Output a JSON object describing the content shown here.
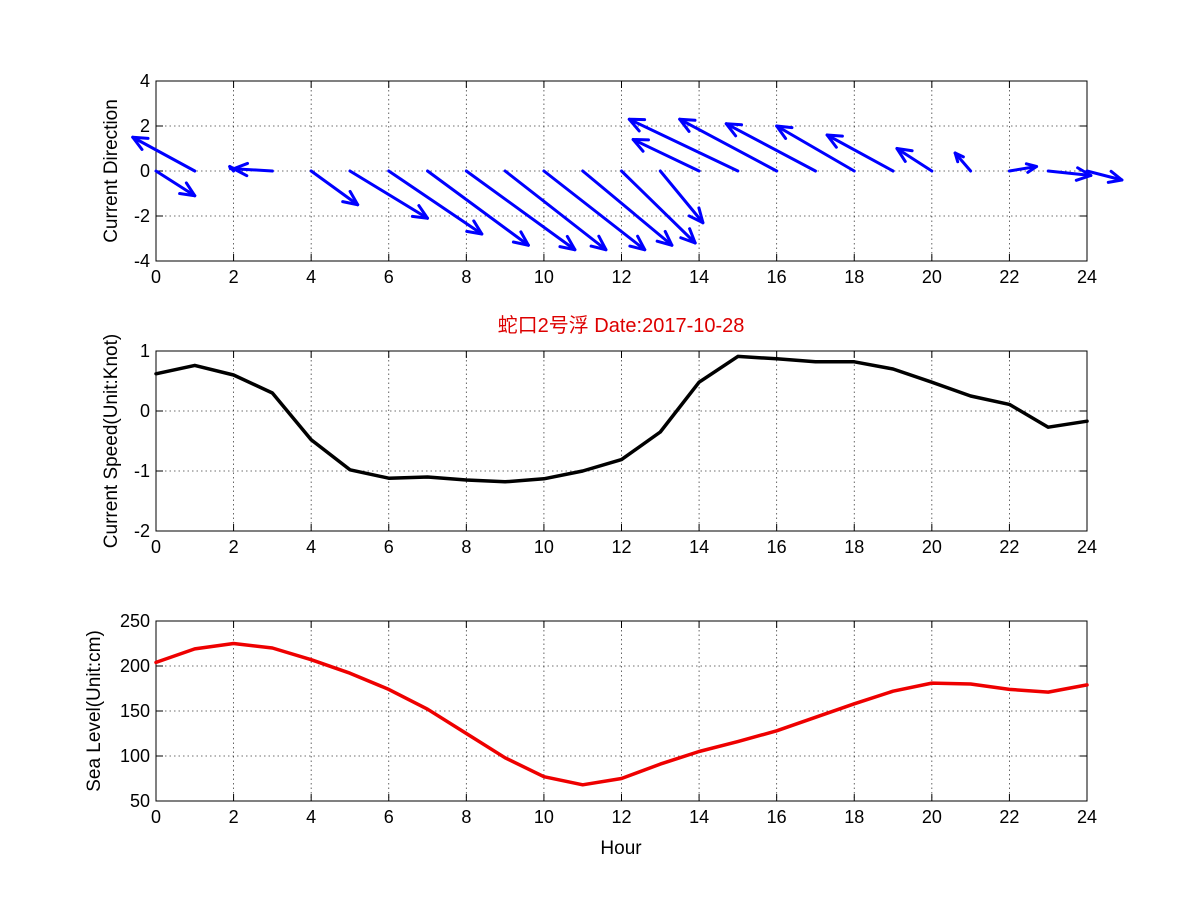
{
  "title": "蛇口2号浮   Date:2017-10-28",
  "colors": {
    "arrows": "#0000ff",
    "speed_line": "#000000",
    "sea_level_line": "#ee0000",
    "title": "#dd0000",
    "background": "#ffffff"
  },
  "chart_data": [
    {
      "type": "quiver",
      "name": "current-direction",
      "ylabel": "Current Direction",
      "xlabel": "",
      "xlim": [
        0,
        24
      ],
      "ylim": [
        -4,
        4
      ],
      "xticks": [
        0,
        2,
        4,
        6,
        8,
        10,
        12,
        14,
        16,
        18,
        20,
        22,
        24
      ],
      "yticks": [
        -4,
        -2,
        0,
        2,
        4
      ],
      "grid": true,
      "x": [
        0,
        1,
        2,
        3,
        4,
        5,
        6,
        7,
        8,
        9,
        10,
        11,
        12,
        13,
        14,
        15,
        16,
        17,
        18,
        19,
        20,
        21,
        22,
        23,
        24
      ],
      "u": [
        1.0,
        -1.6,
        -0.1,
        -1.0,
        1.2,
        2.0,
        2.4,
        2.6,
        2.8,
        2.6,
        2.6,
        2.3,
        1.9,
        1.1,
        -1.7,
        -2.8,
        -2.5,
        -2.3,
        -2.0,
        -1.7,
        -0.9,
        -0.4,
        0.7,
        1.1,
        0.9
      ],
      "v": [
        -1.1,
        1.5,
        0.2,
        0.1,
        -1.5,
        -2.1,
        -2.8,
        -3.3,
        -3.5,
        -3.5,
        -3.5,
        -3.3,
        -3.2,
        -2.3,
        1.4,
        2.3,
        2.3,
        2.1,
        2.0,
        1.6,
        1.0,
        0.8,
        0.2,
        -0.2,
        -0.4
      ]
    },
    {
      "type": "line",
      "name": "current-speed",
      "ylabel": "Current Speed(Unit:Knot)",
      "xlabel": "",
      "xlim": [
        0,
        24
      ],
      "ylim": [
        -2,
        1
      ],
      "xticks": [
        0,
        2,
        4,
        6,
        8,
        10,
        12,
        14,
        16,
        18,
        20,
        22,
        24
      ],
      "yticks": [
        -2,
        -1,
        0,
        1
      ],
      "grid": true,
      "x": [
        0,
        1,
        2,
        3,
        4,
        5,
        6,
        7,
        8,
        9,
        10,
        11,
        12,
        13,
        14,
        15,
        16,
        17,
        18,
        19,
        20,
        21,
        22,
        23,
        24
      ],
      "y": [
        0.62,
        0.76,
        0.6,
        0.3,
        -0.48,
        -0.98,
        -1.12,
        -1.1,
        -1.15,
        -1.18,
        -1.13,
        -1.0,
        -0.81,
        -0.35,
        0.48,
        0.91,
        0.87,
        0.82,
        0.82,
        0.7,
        0.48,
        0.25,
        0.11,
        -0.27,
        -0.17
      ]
    },
    {
      "type": "line",
      "name": "sea-level",
      "ylabel": "Sea Level(Unit:cm)",
      "xlabel": "Hour",
      "xlim": [
        0,
        24
      ],
      "ylim": [
        50,
        250
      ],
      "xticks": [
        0,
        2,
        4,
        6,
        8,
        10,
        12,
        14,
        16,
        18,
        20,
        22,
        24
      ],
      "yticks": [
        50,
        100,
        150,
        200,
        250
      ],
      "grid": true,
      "x": [
        0,
        1,
        2,
        3,
        4,
        5,
        6,
        7,
        8,
        9,
        10,
        11,
        12,
        13,
        14,
        15,
        16,
        17,
        18,
        19,
        20,
        21,
        22,
        23,
        24
      ],
      "y": [
        204,
        219,
        225,
        220,
        207,
        192,
        174,
        152,
        125,
        98,
        77,
        68,
        75,
        91,
        105,
        116,
        128,
        143,
        158,
        172,
        181,
        180,
        174,
        171,
        179
      ]
    }
  ]
}
